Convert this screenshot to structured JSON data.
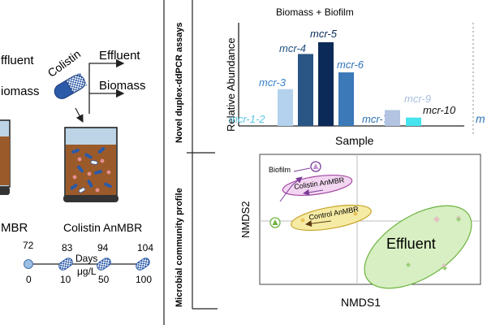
{
  "left_panel": {
    "labels": {
      "effluent_left": "ffluent",
      "biomass_left": "iomass",
      "control_reactor": "MBR",
      "colistin_pill": "Colistin",
      "effluent_right": "Effluent",
      "biomass_right": "Biomass",
      "colistin_reactor": "Colistin AnMBR"
    },
    "timeline": {
      "days_label": "Days",
      "dose_label": "μg/L",
      "days": [
        "72",
        "83",
        "94",
        "104"
      ],
      "doses": [
        "0",
        "10",
        "50",
        "100"
      ]
    }
  },
  "section_labels": {
    "top": "Novel duplex-ddPCR assays",
    "bottom": "Microbial community profile"
  },
  "bar_chart": {
    "title": "Biomass + Biofilm",
    "xlabel": "Sample",
    "ylabel": "Relative Abundance",
    "cut_label": "m",
    "bars": [
      {
        "label": "mcr-1-2",
        "value": 0.0,
        "color": "#a9cbe8"
      },
      {
        "label": "mcr-3",
        "value": 0.44,
        "color": "#b4d2ee"
      },
      {
        "label": "mcr-4",
        "value": 0.86,
        "color": "#2a5686"
      },
      {
        "label": "mcr-5",
        "value": 1.0,
        "color": "#0c2a57"
      },
      {
        "label": "mcr-6",
        "value": 0.64,
        "color": "#3b79b8"
      },
      {
        "label": "mcr-7-8",
        "value": 0.0,
        "color": "#a9cbe8"
      },
      {
        "label": "mcr-9",
        "value": 0.19,
        "color": "#b3c4e2"
      },
      {
        "label": "mcr-10",
        "value": 0.1,
        "color": "#47e4ef"
      }
    ],
    "label_colors": {
      "mcr-1-2": "#5bc6e6",
      "mcr-3": "#3a82c9",
      "mcr-4": "#1f4f7f",
      "mcr-5": "#0d2d5c",
      "mcr-6": "#2f73b4",
      "mcr-7-8": "#2f73b4",
      "mcr-9": "#a9bde0",
      "mcr-10": "#111111"
    }
  },
  "nmds": {
    "xlabel": "NMDS1",
    "ylabel": "NMDS2",
    "groups": {
      "biofilm": "Biofilm",
      "colistin": "Colistin AnMBR",
      "control": "Control AnMBR",
      "effluent": "Effluent"
    },
    "colors": {
      "biofilm_border": "#7a3d99",
      "colistin_fill": "#f3d6f1",
      "colistin_border": "#a349a4",
      "control_fill": "#f6eba4",
      "control_border": "#c7a52a",
      "effluent_fill": "#d7efc2",
      "effluent_border": "#6db33f"
    }
  }
}
